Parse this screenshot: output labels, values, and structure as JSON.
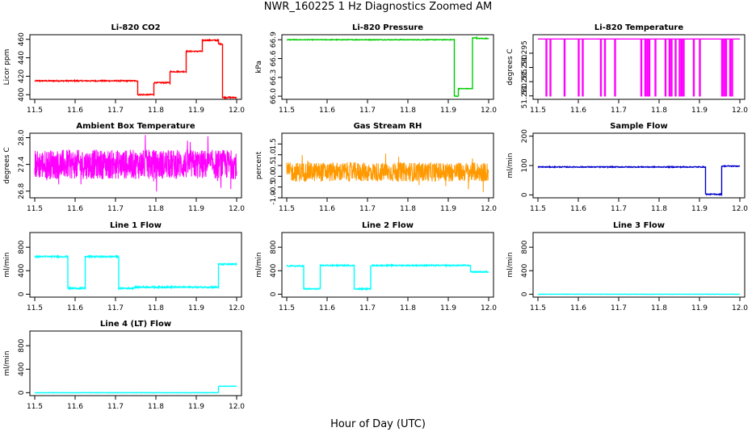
{
  "page": {
    "title": "NWR_160225  1 Hz Diagnostics Zoomed AM",
    "xlabel": "Hour of Day (UTC)"
  },
  "chart_data": [
    {
      "type": "line",
      "title": "Li-820 CO2",
      "ylabel": "Licor ppm",
      "color": "#ff0000",
      "xlim": [
        11.5,
        12.0
      ],
      "ylim": [
        395,
        465
      ],
      "xticks": [
        11.5,
        11.6,
        11.7,
        11.8,
        11.9,
        12.0
      ],
      "yticks": [
        400,
        420,
        440,
        460
      ],
      "segments": [
        [
          11.5,
          11.755,
          415
        ],
        [
          11.755,
          11.795,
          400
        ],
        [
          11.795,
          11.835,
          413
        ],
        [
          11.835,
          11.875,
          425
        ],
        [
          11.875,
          11.915,
          447
        ],
        [
          11.915,
          11.955,
          459
        ],
        [
          11.955,
          11.965,
          455
        ],
        [
          11.965,
          12.0,
          397
        ]
      ],
      "noise": 0.6
    },
    {
      "type": "line",
      "title": "Li-820 Pressure",
      "ylabel": "kPa",
      "color": "#00cc00",
      "xlim": [
        11.5,
        12.0
      ],
      "ylim": [
        65.95,
        66.98
      ],
      "xticks": [
        11.5,
        11.6,
        11.7,
        11.8,
        11.9,
        12.0
      ],
      "yticks": [
        66.0,
        66.3,
        66.6,
        66.9
      ],
      "tick_labels": [
        "66.0",
        "66.3",
        "66.6",
        "66.9"
      ],
      "segments": [
        [
          11.5,
          11.915,
          66.9
        ],
        [
          11.915,
          11.925,
          66.0
        ],
        [
          11.925,
          11.96,
          66.12
        ],
        [
          11.96,
          11.97,
          66.93
        ],
        [
          11.97,
          12.0,
          66.92
        ]
      ],
      "noise": 0.005
    },
    {
      "type": "line",
      "title": "Li-820 Temperature",
      "ylabel": "degrees C",
      "color": "#ff00ff",
      "xlim": [
        11.5,
        12.0
      ],
      "ylim": [
        51.2788,
        51.3015
      ],
      "xticks": [
        11.5,
        11.6,
        11.7,
        11.8,
        11.9,
        12.0
      ],
      "yticks": [
        51.28,
        51.285,
        51.29,
        51.295
      ],
      "tick_labels": [
        "51.280",
        "51.285",
        "51.290",
        "51.295"
      ],
      "high": 51.3,
      "low": 51.28,
      "drops": [
        11.52,
        11.53,
        11.53,
        11.565,
        11.565,
        11.6,
        11.61,
        11.655,
        11.665,
        11.69,
        11.755,
        11.765,
        11.77,
        11.775,
        11.79,
        11.815,
        11.825,
        11.83,
        11.84,
        11.85,
        11.855,
        11.86,
        11.885,
        11.9,
        11.955,
        11.96,
        11.965,
        11.975,
        11.98
      ]
    },
    {
      "type": "line",
      "title": "Ambient Box Temperature",
      "ylabel": "degrees C",
      "color": "#ff00ff",
      "xlim": [
        11.5,
        12.0
      ],
      "ylim": [
        26.65,
        28.1
      ],
      "xticks": [
        11.5,
        11.6,
        11.7,
        11.8,
        11.9,
        12.0
      ],
      "yticks": [
        26.8,
        27.4,
        28.0
      ],
      "tick_labels": [
        "26.8",
        "27.4",
        "28.0"
      ],
      "mean": 27.4,
      "band": 0.33
    },
    {
      "type": "line",
      "title": "Gas Stream RH",
      "ylabel": "percent",
      "color": "#ff9900",
      "xlim": [
        11.5,
        12.0
      ],
      "ylim": [
        -1.0,
        2.0
      ],
      "xticks": [
        11.5,
        11.6,
        11.7,
        11.8,
        11.9,
        12.0
      ],
      "yticks": [
        -1.0,
        -0.5,
        0.0,
        0.5,
        1.0,
        1.5
      ],
      "tick_labels": [
        "-1.0",
        "-0.5",
        "0.0",
        "0.5",
        "1.0",
        "1.5"
      ],
      "mean": 0.2,
      "band": 0.45
    },
    {
      "type": "line",
      "title": "Sample Flow",
      "ylabel": "ml/min",
      "color": "#0000cc",
      "xlim": [
        11.5,
        12.0
      ],
      "ylim": [
        -10,
        210
      ],
      "xticks": [
        11.5,
        11.6,
        11.7,
        11.8,
        11.9,
        12.0
      ],
      "yticks": [
        0,
        100,
        200
      ],
      "segments": [
        [
          11.5,
          11.915,
          95
        ],
        [
          11.915,
          11.955,
          2
        ],
        [
          11.955,
          12.0,
          98
        ]
      ],
      "noise": 1.5
    },
    {
      "type": "line",
      "title": "Line 1 Flow",
      "ylabel": "ml/min",
      "color": "#00ffff",
      "xlim": [
        11.5,
        12.0
      ],
      "ylim": [
        -50,
        1050
      ],
      "xticks": [
        11.5,
        11.6,
        11.7,
        11.8,
        11.9,
        12.0
      ],
      "yticks": [
        0,
        400,
        800
      ],
      "segments": [
        [
          11.5,
          11.582,
          640
        ],
        [
          11.582,
          11.625,
          100
        ],
        [
          11.625,
          11.708,
          640
        ],
        [
          11.708,
          11.745,
          100
        ],
        [
          11.745,
          11.955,
          120
        ],
        [
          11.955,
          12.0,
          510
        ]
      ],
      "noise": 12
    },
    {
      "type": "line",
      "title": "Line 2 Flow",
      "ylabel": "ml/min",
      "color": "#00ffff",
      "xlim": [
        11.5,
        12.0
      ],
      "ylim": [
        -50,
        1050
      ],
      "xticks": [
        11.5,
        11.6,
        11.7,
        11.8,
        11.9,
        12.0
      ],
      "yticks": [
        0,
        400,
        800
      ],
      "segments": [
        [
          11.5,
          11.542,
          480
        ],
        [
          11.542,
          11.583,
          90
        ],
        [
          11.583,
          11.667,
          490
        ],
        [
          11.667,
          11.708,
          90
        ],
        [
          11.708,
          11.955,
          490
        ],
        [
          11.955,
          12.0,
          380
        ]
      ],
      "noise": 10
    },
    {
      "type": "line",
      "title": "Line 3 Flow",
      "ylabel": "ml/min",
      "color": "#00ffff",
      "xlim": [
        11.5,
        12.0
      ],
      "ylim": [
        -50,
        1050
      ],
      "xticks": [
        11.5,
        11.6,
        11.7,
        11.8,
        11.9,
        12.0
      ],
      "yticks": [
        0,
        400,
        800
      ],
      "segments": [
        [
          11.5,
          12.0,
          0
        ]
      ],
      "noise": 2
    },
    {
      "type": "line",
      "title": "Line 4 (LT) Flow",
      "ylabel": "ml/min",
      "color": "#00ffff",
      "xlim": [
        11.5,
        12.0
      ],
      "ylim": [
        -50,
        1050
      ],
      "xticks": [
        11.5,
        11.6,
        11.7,
        11.8,
        11.9,
        12.0
      ],
      "yticks": [
        0,
        400,
        800
      ],
      "segments": [
        [
          11.5,
          11.955,
          0
        ],
        [
          11.955,
          12.0,
          110
        ]
      ],
      "noise": 3
    }
  ]
}
